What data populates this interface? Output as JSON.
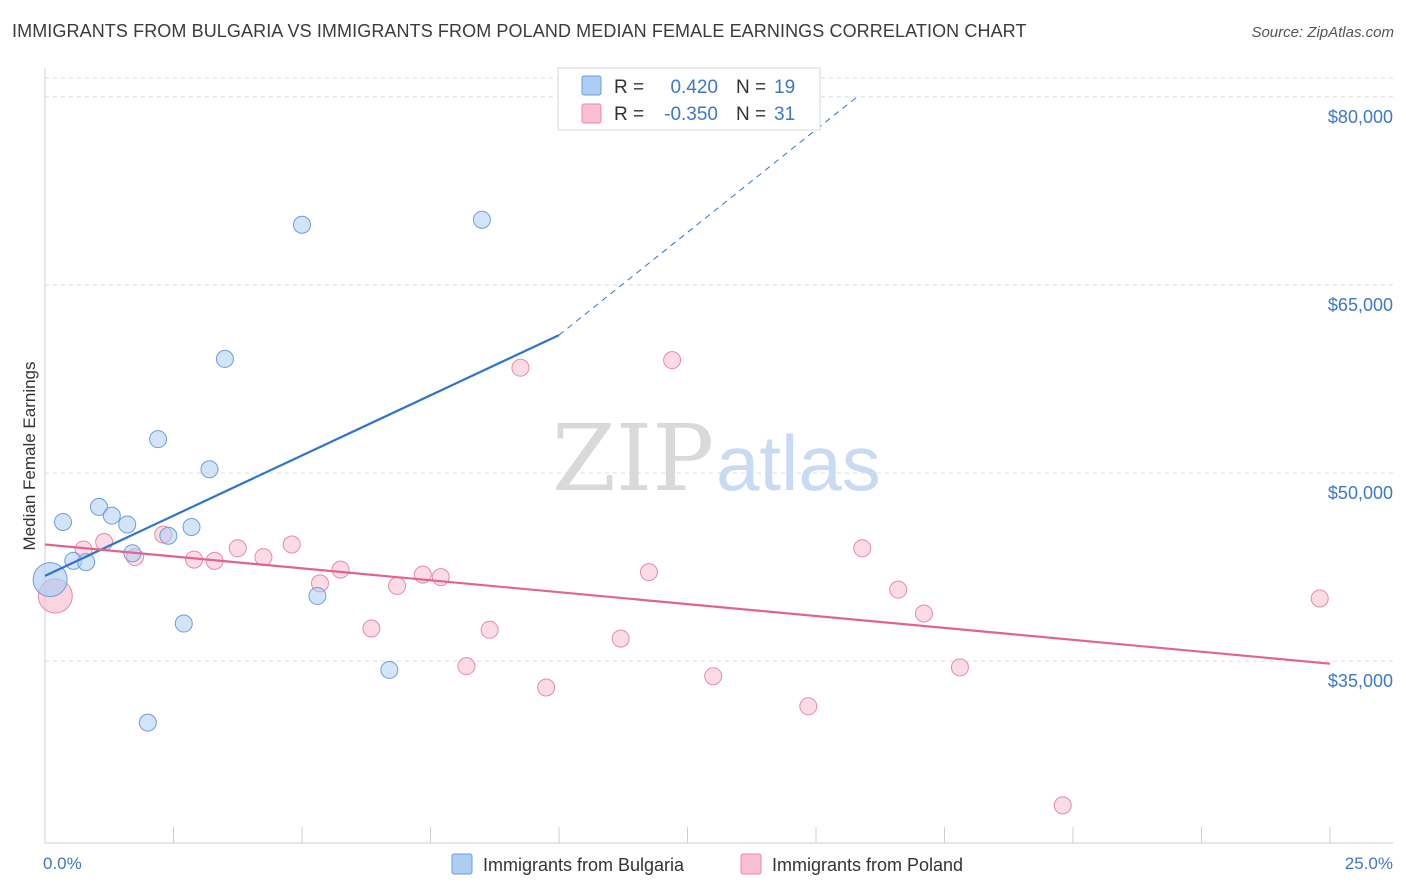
{
  "header": {
    "title": "IMMIGRANTS FROM BULGARIA VS IMMIGRANTS FROM POLAND MEDIAN FEMALE EARNINGS CORRELATION CHART",
    "source": "Source: ZipAtlas.com"
  },
  "watermark": {
    "zip": "ZIP",
    "atlas": "atlas"
  },
  "colors": {
    "bulgaria_fill": "#aecdf2",
    "bulgaria_stroke": "#6a9fdc",
    "bulgaria_line": "#2f74cc",
    "poland_fill": "#f7bfd0",
    "poland_stroke": "#e88aa8",
    "poland_line": "#e0648f",
    "tick_text": "#3b78c9",
    "grid": "#dddddd"
  },
  "legend_top": {
    "rows": [
      {
        "r_label": "R =",
        "r_value": "0.420",
        "n_label": "N =",
        "n_value": "19",
        "series": "bulgaria"
      },
      {
        "r_label": "R =",
        "r_value": "-0.350",
        "n_label": "N =",
        "n_value": "31",
        "series": "poland"
      }
    ]
  },
  "legend_bottom": {
    "items": [
      {
        "label": "Immigrants from Bulgaria",
        "series": "bulgaria"
      },
      {
        "label": "Immigrants from Poland",
        "series": "poland"
      }
    ]
  },
  "chart_data": {
    "type": "scatter",
    "title": "IMMIGRANTS FROM BULGARIA VS IMMIGRANTS FROM POLAND MEDIAN FEMALE EARNINGS CORRELATION CHART",
    "xlabel": "",
    "ylabel": "Median Female Earnings",
    "xlim": [
      0,
      25
    ],
    "ylim": [
      20500,
      81500
    ],
    "x_tick_labels": [
      {
        "value": 0,
        "label": "0.0%"
      },
      {
        "value": 25,
        "label": "25.0%"
      }
    ],
    "y_ticks": [
      {
        "value": 35000,
        "label": "$35,000"
      },
      {
        "value": 50000,
        "label": "$50,000"
      },
      {
        "value": 65000,
        "label": "$65,000"
      },
      {
        "value": 80000,
        "label": "$80,000"
      }
    ],
    "series": [
      {
        "name": "Immigrants from Bulgaria",
        "key": "bulgaria",
        "points": [
          {
            "x": 0.1,
            "y": 41500,
            "big": true
          },
          {
            "x": 0.35,
            "y": 46100
          },
          {
            "x": 0.55,
            "y": 43000
          },
          {
            "x": 0.8,
            "y": 42900
          },
          {
            "x": 1.05,
            "y": 47300
          },
          {
            "x": 1.3,
            "y": 46600
          },
          {
            "x": 1.6,
            "y": 45900
          },
          {
            "x": 1.7,
            "y": 43600
          },
          {
            "x": 2.0,
            "y": 30100
          },
          {
            "x": 2.2,
            "y": 52700
          },
          {
            "x": 2.4,
            "y": 45000
          },
          {
            "x": 2.7,
            "y": 38000
          },
          {
            "x": 2.85,
            "y": 45700
          },
          {
            "x": 3.2,
            "y": 50300
          },
          {
            "x": 3.5,
            "y": 59100
          },
          {
            "x": 5.0,
            "y": 69800
          },
          {
            "x": 5.3,
            "y": 40200
          },
          {
            "x": 6.7,
            "y": 34300
          },
          {
            "x": 8.5,
            "y": 70200
          }
        ],
        "trend": {
          "x0": 0.0,
          "y0": 41800,
          "x1": 10.0,
          "y1": 61000,
          "dash_x1": 15.8,
          "dash_y1": 80000
        }
      },
      {
        "name": "Immigrants from Poland",
        "key": "poland",
        "points": [
          {
            "x": 0.2,
            "y": 40200,
            "big": true
          },
          {
            "x": 0.75,
            "y": 43900
          },
          {
            "x": 1.15,
            "y": 44500
          },
          {
            "x": 1.75,
            "y": 43300
          },
          {
            "x": 2.3,
            "y": 45100
          },
          {
            "x": 2.9,
            "y": 43100
          },
          {
            "x": 3.3,
            "y": 43000
          },
          {
            "x": 3.75,
            "y": 44000
          },
          {
            "x": 4.25,
            "y": 43300
          },
          {
            "x": 4.8,
            "y": 44300
          },
          {
            "x": 5.35,
            "y": 41200
          },
          {
            "x": 5.75,
            "y": 42300
          },
          {
            "x": 6.35,
            "y": 37600
          },
          {
            "x": 6.85,
            "y": 41000
          },
          {
            "x": 7.35,
            "y": 41900
          },
          {
            "x": 7.7,
            "y": 41700
          },
          {
            "x": 8.2,
            "y": 34600
          },
          {
            "x": 8.65,
            "y": 37500
          },
          {
            "x": 9.25,
            "y": 58400
          },
          {
            "x": 9.75,
            "y": 32900
          },
          {
            "x": 11.2,
            "y": 36800
          },
          {
            "x": 11.75,
            "y": 42100
          },
          {
            "x": 12.2,
            "y": 59000
          },
          {
            "x": 13.0,
            "y": 33800
          },
          {
            "x": 14.85,
            "y": 31400
          },
          {
            "x": 15.9,
            "y": 44000
          },
          {
            "x": 16.6,
            "y": 40700
          },
          {
            "x": 17.1,
            "y": 38800
          },
          {
            "x": 17.8,
            "y": 34500
          },
          {
            "x": 19.8,
            "y": 23500
          },
          {
            "x": 24.8,
            "y": 40000
          }
        ],
        "trend": {
          "x0": 0.0,
          "y0": 44300,
          "x1": 25.0,
          "y1": 34800
        }
      }
    ]
  }
}
